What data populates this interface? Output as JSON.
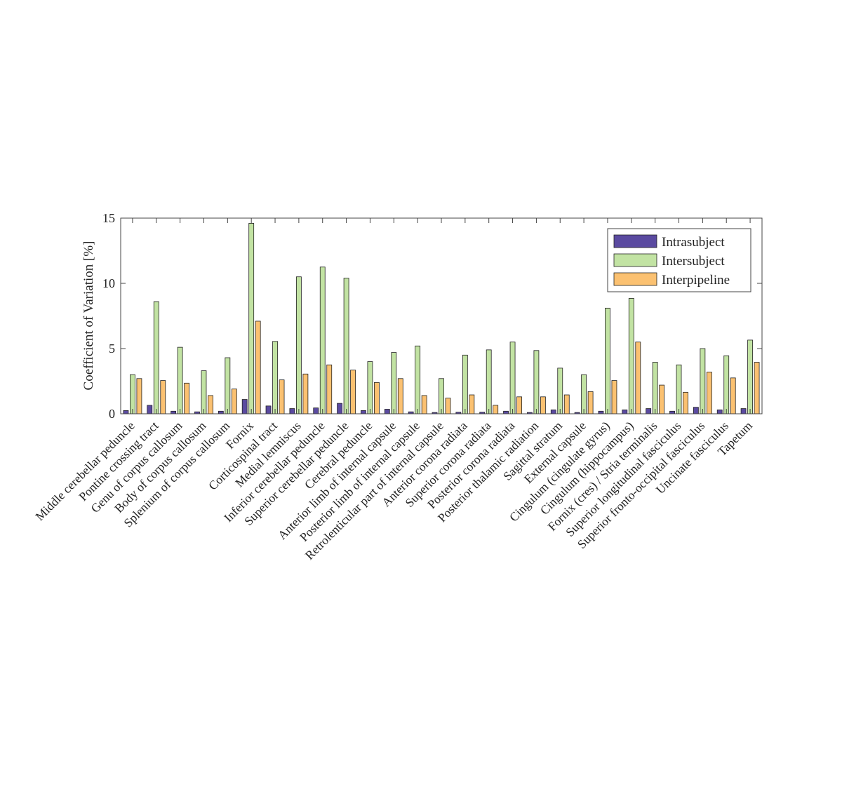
{
  "chart_data": {
    "type": "bar",
    "title": "",
    "xlabel": "",
    "ylabel": "Coefficient of Variation [%]",
    "ylim": [
      0,
      15
    ],
    "yticks": [
      0,
      5,
      10,
      15
    ],
    "grid": false,
    "legend_position": "top-right",
    "categories": [
      "Middle cerebellar peduncle",
      "Pontine crossing tract",
      "Genu of corpus callosum",
      "Body of corpus callosum",
      "Splenium of corpus callosum",
      "Fornix",
      "Corticospinal tract",
      "Medial lemniscus",
      "Inferior cerebellar peduncle",
      "Superior cerebellar peduncle",
      "Cerebral peduncle",
      "Anterior limb of internal capsule",
      "Posterior limb of internal capsule",
      "Retrolenticular part of internal capsule",
      "Anterior corona radiata",
      "Superior corona radiata",
      "Posterior corona radiata",
      "Posterior thalamic radiation",
      "Sagittal stratum",
      "External capsule",
      "Cingulum (cingulate gyrus)",
      "Cingulum (hippocampus)",
      "Fornix (cres) / Stria terminalis",
      "Superior longitudinal fasciculus",
      "Superior fronto-occipital fasciculus",
      "Uncinate fasciculus",
      "Tapetum"
    ],
    "series": [
      {
        "name": "Intrasubject",
        "color": "#5a4aa0",
        "values": [
          0.25,
          0.65,
          0.2,
          0.15,
          0.2,
          1.1,
          0.6,
          0.4,
          0.45,
          0.8,
          0.25,
          0.35,
          0.15,
          0.1,
          0.12,
          0.12,
          0.2,
          0.1,
          0.3,
          0.1,
          0.2,
          0.3,
          0.4,
          0.2,
          0.5,
          0.3,
          0.4
        ]
      },
      {
        "name": "Intersubject",
        "color": "#c2e3a3",
        "values": [
          3.0,
          8.6,
          5.1,
          3.3,
          4.3,
          14.6,
          5.55,
          10.5,
          11.25,
          10.4,
          4.0,
          4.7,
          5.2,
          2.7,
          4.5,
          4.9,
          5.5,
          4.85,
          3.5,
          3.0,
          8.1,
          8.85,
          3.95,
          3.75,
          5.0,
          4.45,
          5.65
        ]
      },
      {
        "name": "Interpipeline",
        "color": "#fbc171",
        "values": [
          2.7,
          2.55,
          2.35,
          1.4,
          1.9,
          7.1,
          2.6,
          3.05,
          3.75,
          3.35,
          2.4,
          2.7,
          1.4,
          1.2,
          1.45,
          0.65,
          1.3,
          1.3,
          1.45,
          1.7,
          2.55,
          5.5,
          2.2,
          1.65,
          3.2,
          2.75,
          3.95
        ]
      }
    ]
  }
}
